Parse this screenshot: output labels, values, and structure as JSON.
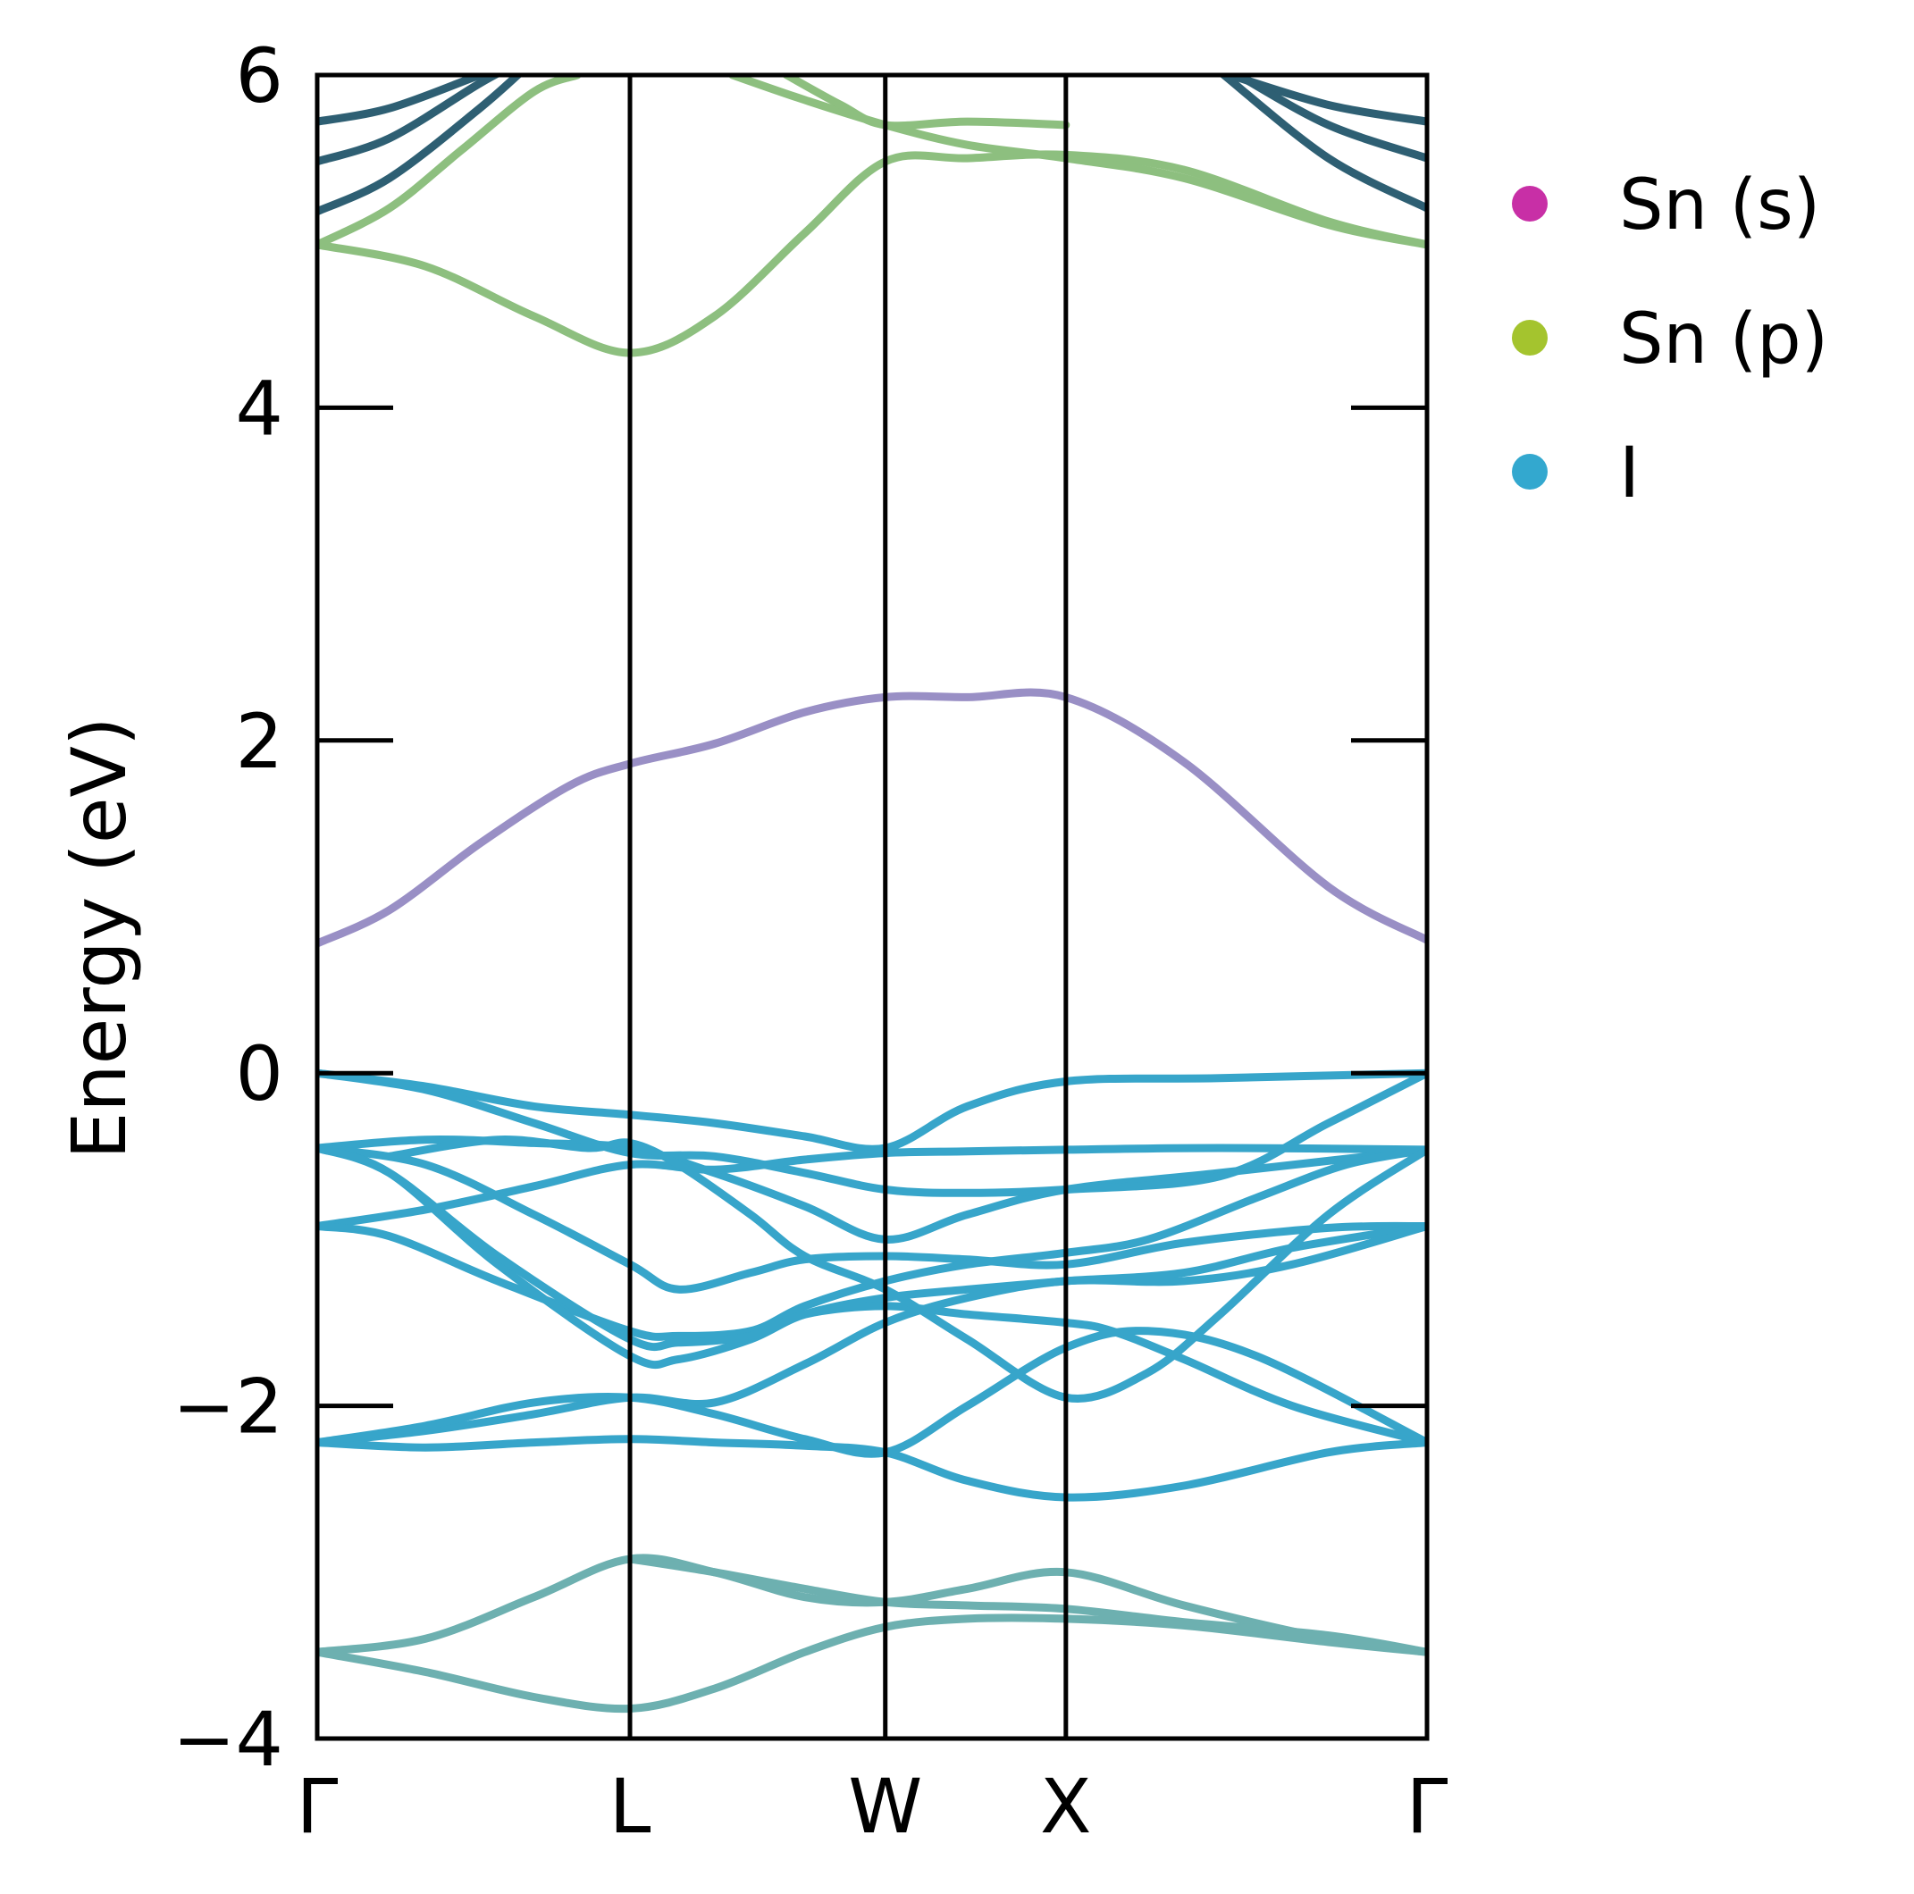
{
  "chart_data": {
    "type": "line",
    "title": "",
    "xlabel": "",
    "ylabel": "Energy (eV)",
    "ylim": [
      -4,
      6
    ],
    "yticks": [
      -4,
      -2,
      0,
      2,
      4,
      6
    ],
    "ytick_labels": [
      "−4",
      "−2",
      "0",
      "2",
      "4",
      "6"
    ],
    "kpoints": [
      {
        "label": "Γ",
        "x": 0.0
      },
      {
        "label": "L",
        "x": 0.866
      },
      {
        "label": "W",
        "x": 1.573
      },
      {
        "label": "X",
        "x": 2.073
      },
      {
        "label": "Γ",
        "x": 3.073
      }
    ],
    "grid": false,
    "legend": {
      "placement": "outside-right-top",
      "entries": [
        {
          "label": "Sn (s)",
          "color": "#c82fa6"
        },
        {
          "label": "Sn (p)",
          "color": "#a4c42e"
        },
        {
          "label": "I",
          "color": "#33a8cf"
        }
      ]
    },
    "band_colors": {
      "conduction_high": "#8dbf7f",
      "conduction_high_dark": "#2e5f73",
      "conduction_low": "#998fc5",
      "valence": "#37a5ca",
      "deep_valence": "#6db0b0"
    },
    "series": [
      {
        "x": [
          0,
          0.2,
          0.45,
          0.7,
          0.866,
          1.1,
          1.35,
          1.573,
          1.8,
          2.073,
          2.4,
          2.8,
          3.073
        ],
        "y": [
          0.78,
          0.98,
          1.38,
          1.73,
          1.86,
          1.98,
          2.17,
          2.26,
          2.26,
          2.26,
          1.87,
          1.12,
          0.8
        ],
        "colorKey": "conduction_low"
      },
      {
        "x": [
          0,
          0.3,
          0.6,
          0.866,
          1.1,
          1.35,
          1.573,
          1.8,
          2.073,
          2.4,
          2.8,
          3.073
        ],
        "y": [
          4.98,
          4.85,
          4.55,
          4.33,
          4.55,
          5.05,
          5.48,
          5.5,
          5.52,
          5.43,
          5.12,
          4.98
        ],
        "colorKey": "conduction_high"
      },
      {
        "x": [
          0,
          0.2,
          0.4,
          0.6,
          0.72
        ],
        "y": [
          4.98,
          5.2,
          5.55,
          5.9,
          6.0
        ],
        "colorKey": "conduction_high"
      },
      {
        "x": [
          1.15,
          1.35,
          1.573,
          1.8,
          2.073,
          2.4,
          2.8,
          3.073
        ],
        "y": [
          6.0,
          5.85,
          5.7,
          5.58,
          5.5,
          5.38,
          5.1,
          4.98
        ],
        "colorKey": "conduction_high"
      },
      {
        "x": [
          1.3,
          1.45,
          1.573,
          1.8,
          2.073
        ],
        "y": [
          6.0,
          5.82,
          5.7,
          5.72,
          5.7
        ],
        "colorKey": "conduction_high"
      },
      {
        "x": [
          0,
          0.2,
          0.45,
          0.58
        ],
        "y": [
          5.72,
          5.8,
          6.0,
          6.1
        ],
        "colorKey": "conduction_high_dark"
      },
      {
        "x": [
          0,
          0.2,
          0.45,
          0.58
        ],
        "y": [
          5.48,
          5.62,
          5.95,
          6.1
        ],
        "colorKey": "conduction_high_dark"
      },
      {
        "x": [
          0,
          0.2,
          0.45,
          0.58
        ],
        "y": [
          5.18,
          5.38,
          5.8,
          6.05
        ],
        "colorKey": "conduction_high_dark"
      },
      {
        "x": [
          2.5,
          2.8,
          3.073
        ],
        "y": [
          6.02,
          5.82,
          5.72
        ],
        "colorKey": "conduction_high_dark"
      },
      {
        "x": [
          2.55,
          2.8,
          3.073
        ],
        "y": [
          6.0,
          5.7,
          5.5
        ],
        "colorKey": "conduction_high_dark"
      },
      {
        "x": [
          2.5,
          2.8,
          3.073
        ],
        "y": [
          6.02,
          5.5,
          5.2
        ],
        "colorKey": "conduction_high_dark"
      },
      {
        "x": [
          0,
          0.3,
          0.6,
          0.866,
          1.1,
          1.35,
          1.573,
          1.8,
          2.073,
          2.5,
          3.073
        ],
        "y": [
          0.0,
          -0.08,
          -0.2,
          -0.25,
          -0.3,
          -0.38,
          -0.45,
          -0.2,
          -0.05,
          -0.03,
          0.0
        ],
        "colorKey": "valence"
      },
      {
        "x": [
          0,
          0.3,
          0.6,
          0.866,
          1.1,
          1.35,
          1.573,
          1.8,
          2.073,
          2.5,
          3.073
        ],
        "y": [
          -0.45,
          -0.4,
          -0.42,
          -0.45,
          -0.6,
          -0.8,
          -1.0,
          -0.85,
          -0.7,
          -0.6,
          -0.46
        ],
        "colorKey": "valence"
      },
      {
        "x": [
          0,
          0.3,
          0.6,
          0.866,
          1.1,
          1.35,
          1.573,
          1.8,
          2.073,
          2.5,
          2.8,
          3.073
        ],
        "y": [
          0.0,
          -0.1,
          -0.3,
          -0.48,
          -0.5,
          -0.6,
          -0.7,
          -0.72,
          -0.7,
          -0.62,
          -0.3,
          0.0
        ],
        "colorKey": "valence"
      },
      {
        "x": [
          0,
          0.3,
          0.6,
          0.866,
          1.1,
          1.35,
          1.573,
          1.8,
          2.073,
          2.5,
          3.073
        ],
        "y": [
          -0.92,
          -0.82,
          -0.68,
          -0.55,
          -0.58,
          -0.52,
          -0.48,
          -0.47,
          -0.46,
          -0.45,
          -0.46
        ],
        "colorKey": "valence"
      },
      {
        "x": [
          0,
          0.3,
          0.6,
          0.866,
          1.0,
          1.2,
          1.35,
          1.573,
          1.8,
          2.073,
          2.4,
          2.8,
          3.073
        ],
        "y": [
          -0.45,
          -0.55,
          -0.85,
          -1.15,
          -1.3,
          -1.2,
          -1.12,
          -1.1,
          -1.12,
          -1.15,
          -1.02,
          -0.93,
          -0.92
        ],
        "colorKey": "valence"
      },
      {
        "x": [
          0,
          0.2,
          0.5,
          0.866,
          1.0,
          1.2,
          1.35,
          1.573,
          1.8,
          2.073,
          2.3,
          2.6,
          2.85,
          3.073
        ],
        "y": [
          -0.92,
          -0.98,
          -1.25,
          -1.55,
          -1.58,
          -1.55,
          -1.4,
          -1.25,
          -1.15,
          -1.08,
          -1.0,
          -0.75,
          -0.55,
          -0.46
        ],
        "colorKey": "valence"
      },
      {
        "x": [
          0,
          0.2,
          0.5,
          0.866,
          1.0,
          1.2,
          1.35,
          1.573,
          1.8,
          2.073,
          2.4,
          2.7,
          3.073
        ],
        "y": [
          -0.45,
          -0.6,
          -1.15,
          -1.7,
          -1.72,
          -1.6,
          -1.45,
          -1.35,
          -1.3,
          -1.25,
          -1.2,
          -1.05,
          -0.92
        ],
        "colorKey": "valence"
      },
      {
        "x": [
          0,
          0.2,
          0.5,
          0.866,
          1.0,
          1.2,
          1.35,
          1.573,
          1.8,
          2.073,
          2.2,
          2.4,
          2.7,
          3.073
        ],
        "y": [
          -0.45,
          -0.6,
          -1.1,
          -1.6,
          -1.62,
          -1.58,
          -1.45,
          -1.4,
          -1.45,
          -1.5,
          -1.55,
          -1.72,
          -2.0,
          -2.22
        ],
        "colorKey": "valence"
      },
      {
        "x": [
          0.2,
          0.5,
          0.75,
          0.866,
          1.0,
          1.2,
          1.35,
          1.573,
          1.8,
          2.073,
          2.3,
          2.5,
          2.8,
          3.073
        ],
        "y": [
          -0.5,
          -0.4,
          -0.45,
          -0.42,
          -0.55,
          -0.85,
          -1.1,
          -1.3,
          -1.6,
          -1.95,
          -1.8,
          -1.45,
          -0.85,
          -0.46
        ],
        "colorKey": "valence"
      },
      {
        "x": [
          0,
          0.3,
          0.6,
          0.866,
          1.1,
          1.35,
          1.573,
          1.8,
          2.073,
          2.4,
          2.7,
          3.073
        ],
        "y": [
          -2.22,
          -2.15,
          -2.05,
          -1.95,
          -1.98,
          -1.75,
          -1.5,
          -1.35,
          -1.25,
          -1.25,
          -1.15,
          -0.92
        ],
        "colorKey": "valence"
      },
      {
        "x": [
          0,
          0.3,
          0.6,
          0.866,
          1.1,
          1.35,
          1.573,
          1.8,
          2.073,
          2.4,
          2.8,
          3.073
        ],
        "y": [
          -2.22,
          -2.25,
          -2.22,
          -2.2,
          -2.22,
          -2.24,
          -2.28,
          -2.45,
          -2.55,
          -2.48,
          -2.28,
          -2.22
        ],
        "colorKey": "valence"
      },
      {
        "x": [
          0,
          0.3,
          0.6,
          0.866,
          1.1,
          1.35,
          1.573,
          1.8,
          2.073,
          2.3,
          2.6,
          3.073
        ],
        "y": [
          -2.22,
          -2.12,
          -1.98,
          -1.95,
          -2.05,
          -2.2,
          -2.28,
          -2.0,
          -1.65,
          -1.55,
          -1.7,
          -2.22
        ],
        "colorKey": "valence"
      },
      {
        "x": [
          0,
          0.3,
          0.6,
          0.866,
          1.1,
          1.35,
          1.573,
          1.8,
          2.073,
          2.4,
          2.8,
          3.073
        ],
        "y": [
          -3.48,
          -3.4,
          -3.15,
          -2.92,
          -3.0,
          -3.15,
          -3.18,
          -3.1,
          -3.0,
          -3.2,
          -3.4,
          -3.48
        ],
        "colorKey": "deep_valence"
      },
      {
        "x": [
          0,
          0.3,
          0.6,
          0.866,
          1.1,
          1.35,
          1.573,
          1.8,
          2.073,
          2.4,
          2.8,
          3.073
        ],
        "y": [
          -3.48,
          -3.6,
          -3.75,
          -3.82,
          -3.7,
          -3.48,
          -3.33,
          -3.28,
          -3.28,
          -3.32,
          -3.42,
          -3.48
        ],
        "colorKey": "deep_valence"
      },
      {
        "x": [
          0.866,
          1.1,
          1.35,
          1.573,
          1.8,
          2.073,
          2.4,
          2.8,
          3.073
        ],
        "y": [
          -2.92,
          -3.0,
          -3.1,
          -3.18,
          -3.2,
          -3.22,
          -3.3,
          -3.38,
          -3.48
        ],
        "colorKey": "deep_valence"
      }
    ]
  }
}
